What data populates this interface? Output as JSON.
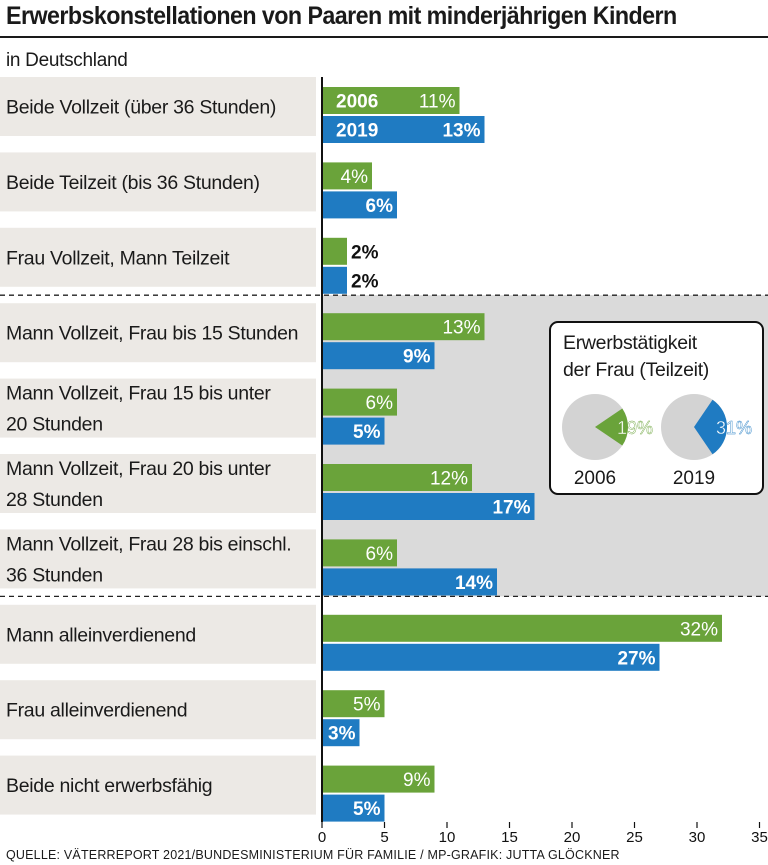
{
  "header": {
    "title": "Erwerbskonstellationen von Paaren mit minderjährigen Kindern",
    "subtitle": "in Deutschland"
  },
  "chart_data": {
    "type": "bar",
    "orientation": "horizontal",
    "title": "Erwerbskonstellationen von Paaren mit minderjährigen Kindern",
    "subtitle": "in Deutschland",
    "categories": [
      "Beide Vollzeit (über 36 Stunden)",
      "Beide Teilzeit (bis 36 Stunden)",
      "Frau Vollzeit, Mann Teilzeit",
      "Mann Vollzeit, Frau bis 15 Stunden",
      "Mann Vollzeit, Frau 15 bis unter 20 Stunden",
      "Mann Vollzeit, Frau 20 bis unter 28 Stunden",
      "Mann Vollzeit, Frau 28 bis einschl. 36 Stunden",
      "Mann alleinverdienend",
      "Frau alleinverdienend",
      "Beide nicht erwerbsfähig"
    ],
    "category_lines": [
      [
        "Beide Vollzeit (über 36 Stunden)"
      ],
      [
        "Beide Teilzeit (bis 36 Stunden)"
      ],
      [
        "Frau Vollzeit, Mann Teilzeit"
      ],
      [
        "Mann Vollzeit, Frau bis 15 Stunden"
      ],
      [
        "Mann Vollzeit, Frau 15 bis unter",
        "20 Stunden"
      ],
      [
        "Mann Vollzeit, Frau 20 bis unter",
        "28 Stunden"
      ],
      [
        "Mann Vollzeit, Frau 28 bis einschl.",
        "36 Stunden"
      ],
      [
        "Mann alleinverdienend"
      ],
      [
        "Frau alleinverdienend"
      ],
      [
        "Beide nicht erwerbsfähig"
      ]
    ],
    "series": [
      {
        "name": "2006",
        "color": "#6aa33a",
        "values": [
          11,
          4,
          2,
          13,
          6,
          12,
          6,
          32,
          5,
          9
        ]
      },
      {
        "name": "2019",
        "color": "#1f7bc2",
        "values": [
          13,
          6,
          2,
          9,
          5,
          17,
          14,
          27,
          3,
          5
        ]
      }
    ],
    "value_suffix": "%",
    "xlim": [
      0,
      35
    ],
    "xticks": [
      0,
      5,
      10,
      15,
      20,
      25,
      30,
      35
    ],
    "highlighted_categories": [
      3,
      4,
      5,
      6
    ],
    "inset": {
      "type": "pie",
      "title_lines": [
        "Erwerbstätigkeit",
        "der Frau (Teilzeit)"
      ],
      "pies": [
        {
          "label": "2006",
          "value": 19,
          "value_label": "19%",
          "color": "#6aa33a"
        },
        {
          "label": "2019",
          "value": 31,
          "value_label": "31%",
          "color": "#1f7bc2"
        }
      ],
      "rest_color": "#d3d3d3"
    },
    "source": "QUELLE: VÄTERREPORT 2021/BUNDESMINISTERIUM FÜR FAMILIE / MP-GRAFIK: JUTTA GLÖCKNER"
  }
}
